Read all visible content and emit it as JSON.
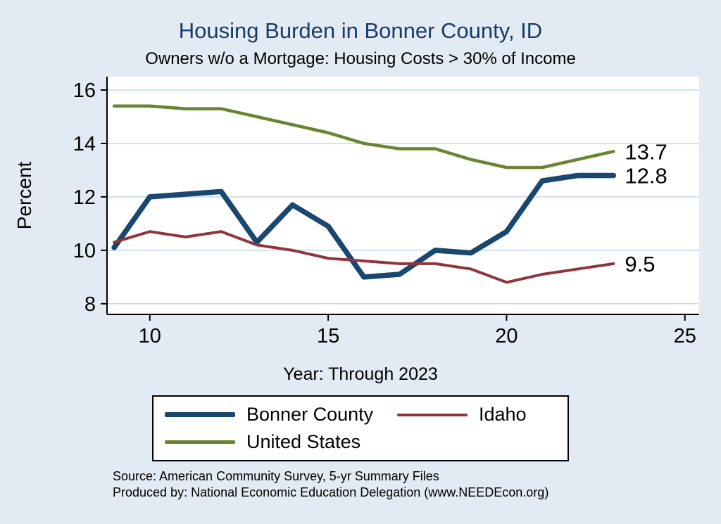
{
  "chart_data": {
    "type": "line",
    "title": "Housing Burden in Bonner County, ID",
    "subtitle": "Owners w/o a Mortgage: Housing Costs > 30% of Income",
    "xlabel": "Year: Through 2023",
    "ylabel": "Percent",
    "x": [
      9,
      10,
      11,
      12,
      13,
      14,
      15,
      16,
      17,
      18,
      19,
      20,
      21,
      22,
      23
    ],
    "series": [
      {
        "name": "Bonner County",
        "color": "#1a476f",
        "line_width": 7.5,
        "end_label": "12.8",
        "values": [
          10.1,
          12.0,
          12.1,
          12.2,
          10.3,
          11.7,
          10.9,
          9.0,
          9.1,
          10.0,
          9.9,
          10.7,
          12.6,
          12.8,
          12.8
        ]
      },
      {
        "name": "Idaho",
        "color": "#90353b",
        "line_width": 4,
        "end_label": "9.5",
        "values": [
          10.3,
          10.7,
          10.5,
          10.7,
          10.2,
          10.0,
          9.7,
          9.6,
          9.5,
          9.5,
          9.3,
          8.8,
          9.1,
          9.3,
          9.5
        ]
      },
      {
        "name": "United States",
        "color": "#6b8431",
        "line_width": 4.5,
        "end_label": "13.7",
        "values": [
          15.4,
          15.4,
          15.3,
          15.3,
          15.0,
          14.7,
          14.4,
          14.0,
          13.8,
          13.8,
          13.4,
          13.1,
          13.1,
          13.4,
          13.7
        ]
      }
    ],
    "xticks": [
      10,
      15,
      20,
      25
    ],
    "yticks": [
      8,
      10,
      12,
      14,
      16
    ],
    "xlim": [
      8.8,
      25.4
    ],
    "ylim": [
      7.6,
      16.5
    ],
    "grid": true,
    "legend_position": "bottom"
  },
  "notes": {
    "source": "Source: American Community Survey, 5-yr Summary Files",
    "produced_by": "Produced by: National Economic Education Delegation (www.NEEDEcon.org)"
  },
  "colors": {
    "background": "#e2ebf3",
    "plot_background": "#ffffff",
    "gridline": "#c9dcea",
    "axis": "#000000",
    "title": "#1a3a64"
  }
}
